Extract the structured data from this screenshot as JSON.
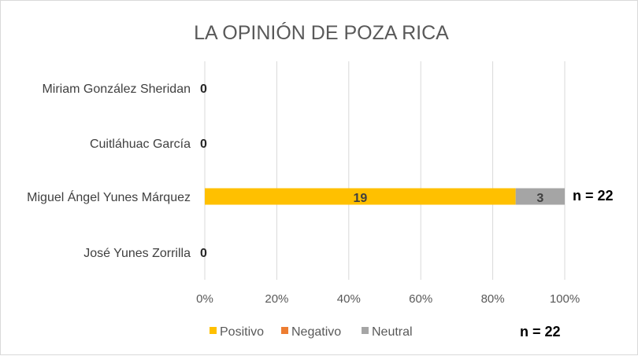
{
  "chart_data": {
    "type": "bar",
    "orientation": "horizontal",
    "stacked": "percent",
    "title": "LA OPINIÓN DE POZA RICA",
    "categories": [
      "Miriam González Sheridan",
      "Cuitláhuac García",
      "Miguel Ángel Yunes Márquez",
      "José Yunes Zorrilla"
    ],
    "series": [
      {
        "name": "Positivo",
        "color": "#FFC000",
        "values": [
          0,
          0,
          19,
          0
        ]
      },
      {
        "name": "Negativo",
        "color": "#ED7D31",
        "values": [
          0,
          0,
          0,
          0
        ]
      },
      {
        "name": "Neutral",
        "color": "#A5A5A5",
        "values": [
          0,
          0,
          3,
          0
        ]
      }
    ],
    "totals": [
      0,
      0,
      22,
      0
    ],
    "zero_label": "0",
    "bar_annotation": "n = 22",
    "x_ticks": [
      "0%",
      "20%",
      "40%",
      "60%",
      "80%",
      "100%"
    ],
    "xlim": [
      0,
      1
    ],
    "grid": true,
    "legend_position": "bottom",
    "footer_note": "n = 22"
  }
}
